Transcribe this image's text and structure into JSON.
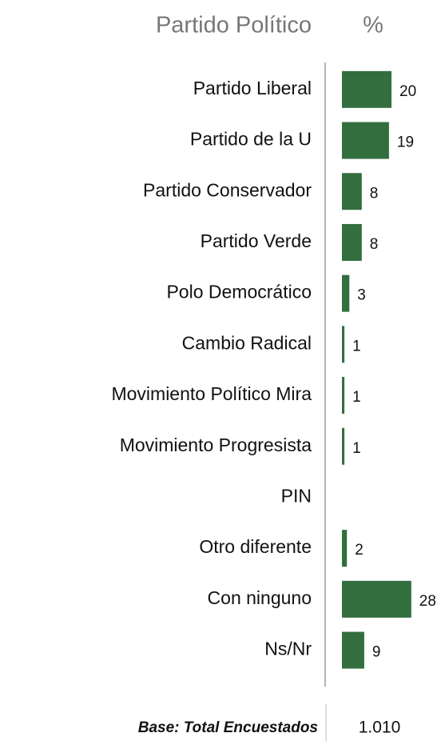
{
  "chart_data": {
    "type": "barh",
    "category_header": "Partido Político",
    "value_header": "%",
    "categories": [
      "Partido Liberal",
      "Partido de la U",
      "Partido Conservador",
      "Partido Verde",
      "Polo Democrático",
      "Cambio Radical",
      "Movimiento Político Mira",
      "Movimiento Progresista",
      "PIN",
      "Otro diferente",
      "Con ninguno",
      "Ns/Nr"
    ],
    "values": [
      20,
      19,
      8,
      8,
      3,
      1,
      1,
      1,
      null,
      2,
      28,
      9
    ],
    "color": "#336e3f",
    "xlim": [
      0,
      30
    ],
    "base_label": "Base: Total Encuestados",
    "base_value": "1.010"
  }
}
